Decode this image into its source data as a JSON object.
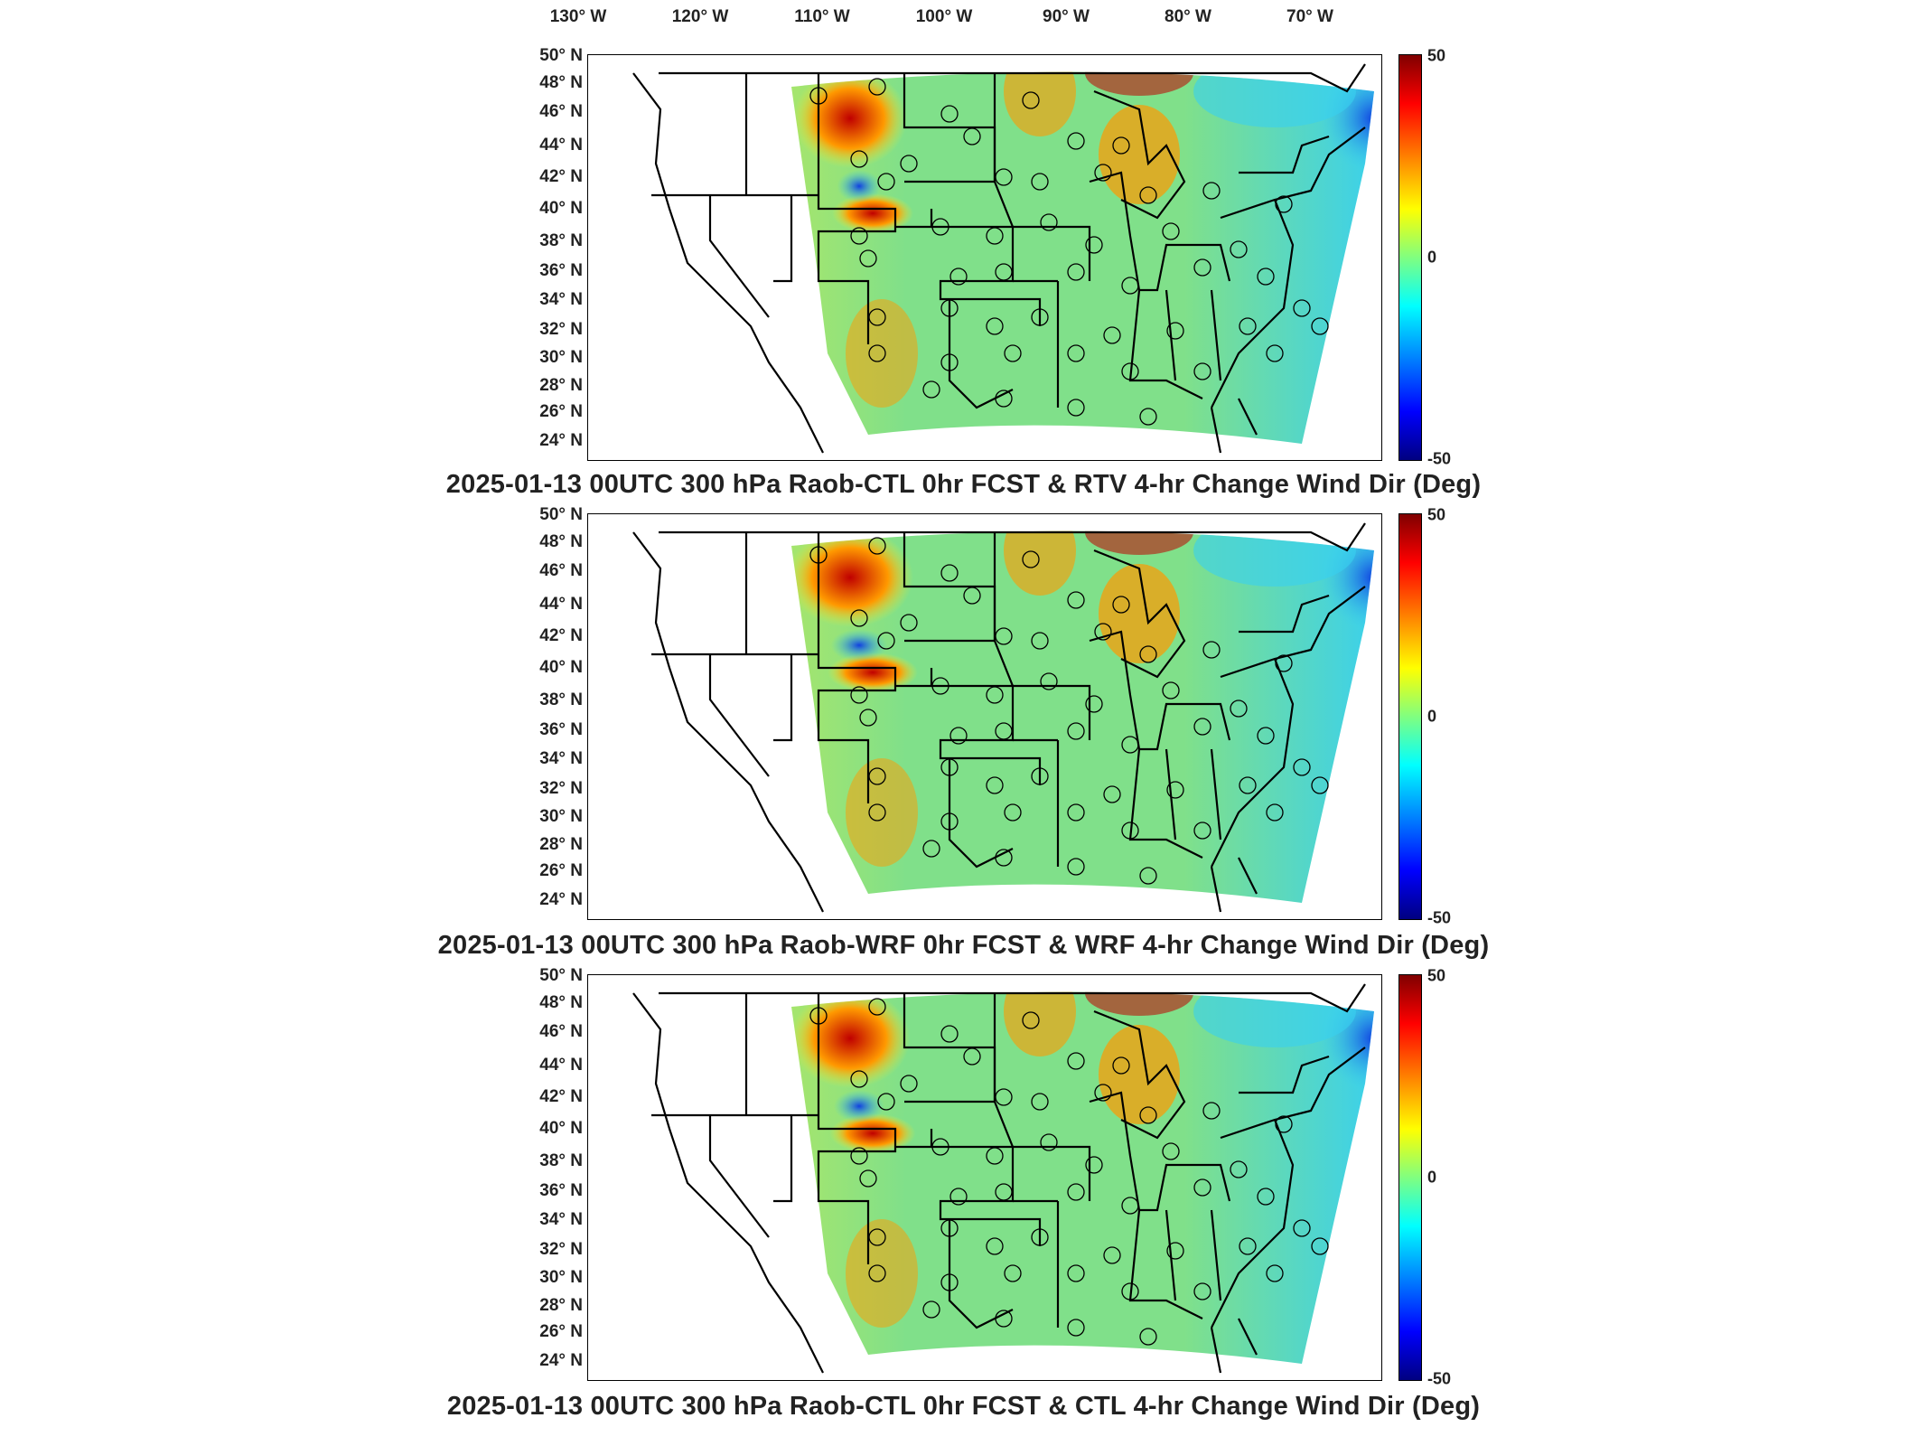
{
  "lon_labels": [
    "130° W",
    "120° W",
    "110° W",
    "100° W",
    "90° W",
    "80° W",
    "70° W"
  ],
  "lat_labels": [
    "50° N",
    "48° N",
    "46° N",
    "44° N",
    "42° N",
    "40° N",
    "38° N",
    "36° N",
    "34° N",
    "32° N",
    "30° N",
    "28° N",
    "26° N",
    "24° N"
  ],
  "colorbar": {
    "max": "50",
    "mid": "0",
    "min": "-50"
  },
  "panels": [
    {
      "caption": "2025-01-13 00UTC 300 hPa Raob-CTL 0hr FCST & RTV 4-hr Change Wind Dir (Deg)"
    },
    {
      "caption": "2025-01-13 00UTC 300 hPa Raob-WRF 0hr FCST & WRF 4-hr Change Wind Dir (Deg)"
    },
    {
      "caption": "2025-01-13 00UTC 300 hPa Raob-CTL 0hr FCST & CTL 4-hr Change Wind Dir (Deg)"
    }
  ],
  "colors": {
    "high": "#c00000",
    "orange": "#ff9900",
    "yellow": "#e8ee3a",
    "green": "#80e08a",
    "cyan": "#38d0f0",
    "blue": "#1040e0"
  }
}
